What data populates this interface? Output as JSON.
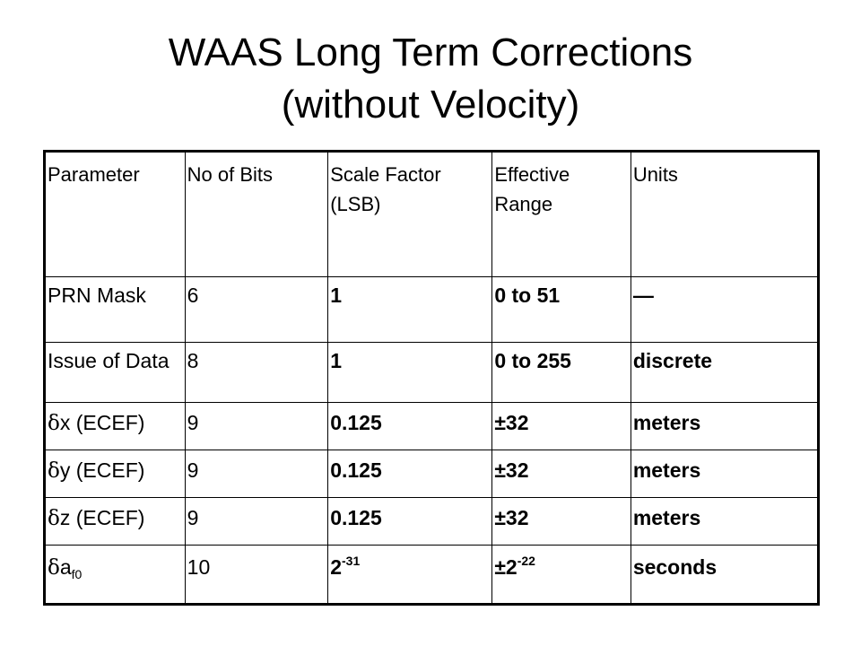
{
  "slide": {
    "title_line1": "WAAS Long Term Corrections",
    "title_line2": "(without Velocity)"
  },
  "table": {
    "headers": [
      "Parameter",
      "No of Bits",
      "Scale Factor (LSB)",
      "Effective Range",
      "Units"
    ],
    "rows": [
      {
        "parameter": "PRN Mask",
        "bits": "6",
        "scale": "1",
        "range": "0 to 51",
        "units": "—"
      },
      {
        "parameter": "Issue of Data",
        "bits": "8",
        "scale": "1",
        "range": "0 to 255",
        "units": "discrete"
      },
      {
        "delta": "δ",
        "param_var": "x",
        "param_rest": " (ECEF)",
        "bits": "9",
        "scale": "0.125",
        "range": "±32",
        "units": "meters"
      },
      {
        "delta": "δ",
        "param_var": "y",
        "param_rest": " (ECEF)",
        "bits": "9",
        "scale": "0.125",
        "range": "±32",
        "units": "meters"
      },
      {
        "delta": "δ",
        "param_var": "z",
        "param_rest": " (ECEF)",
        "bits": "9",
        "scale": "0.125",
        "range": "±32",
        "units": "meters"
      },
      {
        "delta": "δ",
        "param_var": "a",
        "param_sub": "f0",
        "bits": "10",
        "scale_base": "2",
        "scale_exp": "-31",
        "range_base": "±2",
        "range_exp": "-22",
        "units": "seconds"
      }
    ]
  }
}
